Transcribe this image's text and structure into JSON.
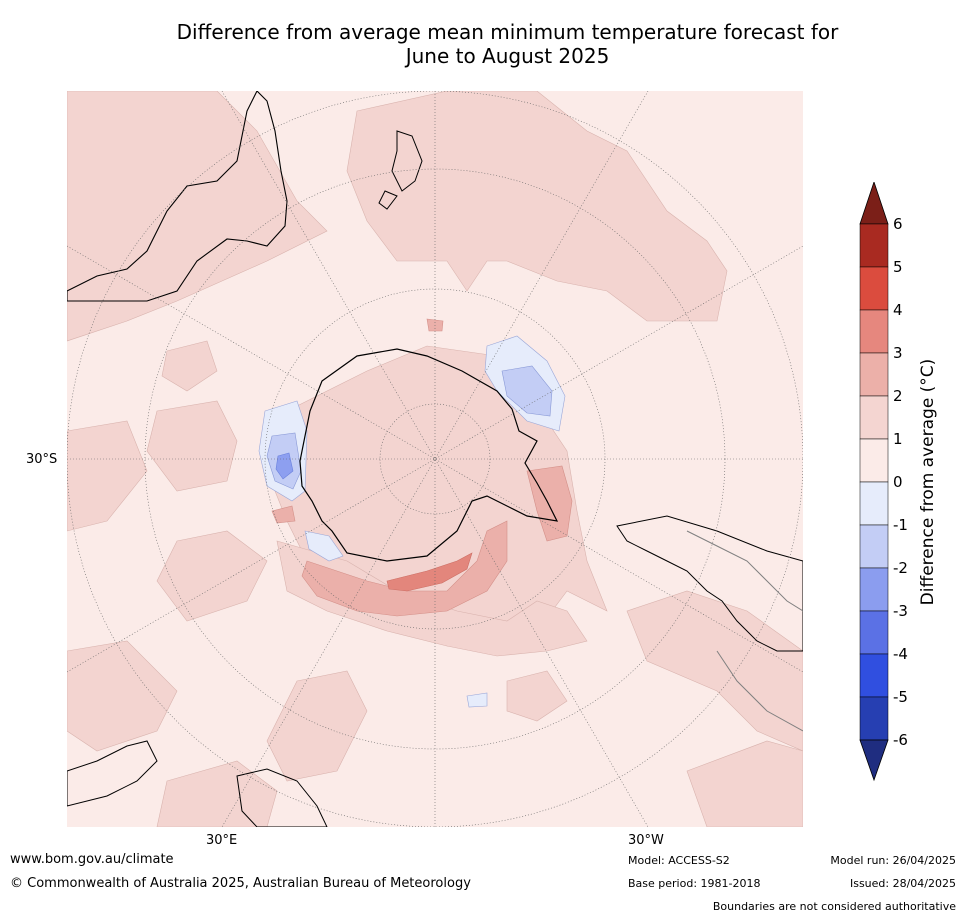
{
  "title_line1": "Difference from average mean minimum temperature forecast for",
  "title_line2": "June to August 2025",
  "map": {
    "projection": "south-polar-stereographic",
    "lat_label": "30°S",
    "lon_labels": [
      "30°E",
      "30°W"
    ],
    "colors": {
      "background": "#fbebe8",
      "band_1_2": "#f3d4d0",
      "band_2_3": "#ebb0aa",
      "band_3_4": "#e3867c",
      "band_0_m1": "#e6ecfb",
      "band_m1_m2": "#c3cdf5",
      "band_m2_m3": "#8d9ff0",
      "coastline": "#000000",
      "boundaries": "#808080"
    }
  },
  "colorbar": {
    "label": "Difference from average (°C)",
    "ticks": [
      "6",
      "5",
      "4",
      "3",
      "2",
      "1",
      "0",
      "-1",
      "-2",
      "-3",
      "-4",
      "-5",
      "-6"
    ],
    "colors": {
      "over": "#7b1f18",
      "5_6": "#a92a21",
      "4_5": "#db4c3e",
      "3_4": "#e6877e",
      "2_3": "#ecb0a9",
      "1_2": "#f4d5d1",
      "0_1": "#fbebe8",
      "m1_0": "#e6ecfb",
      "m2_m1": "#c3cdf5",
      "m3_m2": "#8b9def",
      "m4_m3": "#5b71e5",
      "m5_m4": "#304fe0",
      "m6_m5": "#263fb2",
      "under": "#1f2d80"
    }
  },
  "footer": {
    "website": "www.bom.gov.au/climate",
    "copyright": "© Commonwealth of Australia 2025, Australian Bureau of Meteorology",
    "model": "Model: ACCESS-S2",
    "base_period": "Base period: 1981-2018",
    "model_run": "Model run: 26/04/2025",
    "issued": "Issued: 28/04/2025",
    "disclaimer": "Boundaries are not considered authoritative"
  }
}
